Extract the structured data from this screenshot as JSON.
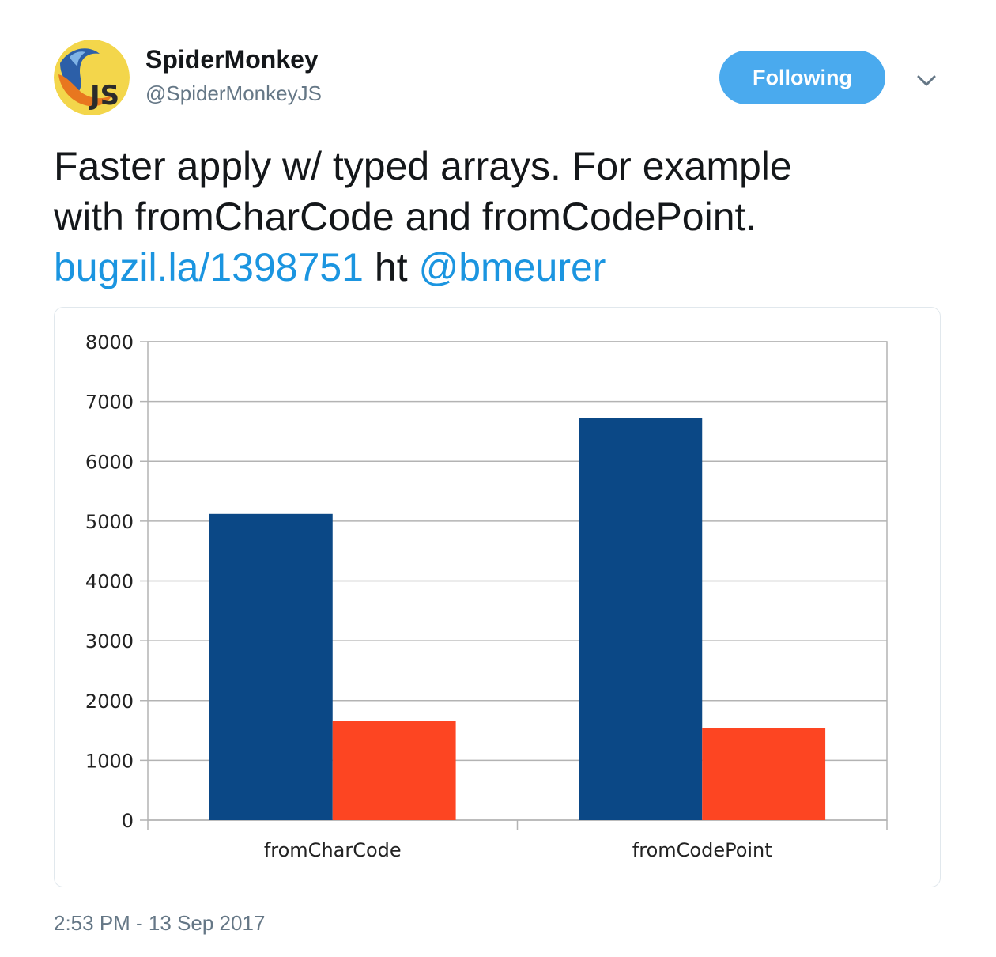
{
  "author": {
    "display_name": "SpiderMonkey",
    "handle": "@SpiderMonkeyJS",
    "avatar_icon": "spidermonkey-js-logo-icon",
    "avatar_text": "JS"
  },
  "follow_button": {
    "label": "Following",
    "color": "#4aaaee"
  },
  "caret_icon": "chevron-down-icon",
  "tweet": {
    "line1": "Faster apply w/ typed arrays. For example",
    "line2": "with fromCharCode and fromCodePoint.",
    "link": "bugzil.la/1398751",
    "mid_text": " ht ",
    "mention": "@bmeurer",
    "link_color": "#1b95e0"
  },
  "chart_data": {
    "type": "bar",
    "categories": [
      "fromCharCode",
      "fromCodePoint"
    ],
    "series": [
      {
        "values": [
          5120,
          6730
        ],
        "color": "#0b4886"
      },
      {
        "values": [
          1660,
          1540
        ],
        "color": "#fd4522"
      }
    ],
    "ylim": [
      0,
      8000
    ],
    "yticks": [
      "0",
      "1000",
      "2000",
      "3000",
      "4000",
      "5000",
      "6000",
      "7000",
      "8000"
    ],
    "grid": true,
    "legend": "none"
  },
  "timestamp": "2:53 PM - 13 Sep 2017"
}
